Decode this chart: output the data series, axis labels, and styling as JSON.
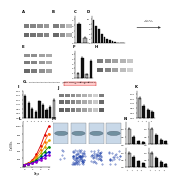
{
  "bg_color": "#ffffff",
  "wb_band_color": "#444444",
  "wb_bg": "#e8e8e8",
  "bar_black": "#111111",
  "bar_gray": "#888888",
  "bar_lgray": "#cccccc",
  "bar_white": "#ffffff",
  "seq_bg": "#f0f0f0",
  "line_colors": [
    "#dd0000",
    "#ff6600",
    "#ddaa00",
    "#008800",
    "#0000cc",
    "#9900cc"
  ],
  "colony_bg": "#c8d8e8",
  "colony_circle": "#7090a0",
  "invasion_bg": "#d0d8e0",
  "panel_C_vals": [
    3.2,
    0.9
  ],
  "panel_C_colors": [
    "#111111",
    "#aaaaaa"
  ],
  "panel_D_vals": [
    9.5,
    7.2,
    5.8,
    4.0,
    2.5,
    1.8,
    1.2,
    0.8,
    0.5,
    0.3,
    0.2,
    0.15
  ],
  "panel_D_colors": [
    "#111111",
    "#111111",
    "#111111",
    "#111111",
    "#111111",
    "#111111",
    "#111111",
    "#111111",
    "#111111",
    "#111111",
    "#111111",
    "#111111"
  ],
  "panel_F_vals": [
    1.0,
    4.2,
    0.8,
    3.5
  ],
  "panel_F_colors": [
    "#aaaaaa",
    "#111111",
    "#aaaaaa",
    "#111111"
  ],
  "panel_H_vals": [
    1.2,
    0.8,
    0.5,
    0.3,
    0.9,
    0.7,
    0.4,
    0.6,
    1.0
  ],
  "panel_H_colors": [
    "#111111",
    "#111111",
    "#111111",
    "#111111",
    "#111111",
    "#111111",
    "#111111",
    "#111111",
    "#aaaaaa"
  ],
  "panel_K_vals": [
    1.0,
    0.6,
    0.4,
    0.3
  ],
  "panel_K_colors": [
    "#aaaaaa",
    "#111111",
    "#111111",
    "#111111"
  ],
  "panel_N1_vals": [
    1.0,
    0.5,
    0.2,
    0.15
  ],
  "panel_N1_colors": [
    "#aaaaaa",
    "#111111",
    "#111111",
    "#111111"
  ],
  "panel_N2_vals": [
    1.0,
    0.6,
    0.3,
    0.2
  ],
  "panel_N2_colors": [
    "#aaaaaa",
    "#111111",
    "#111111",
    "#111111"
  ],
  "line_data": [
    [
      50,
      80,
      160,
      300,
      520,
      780,
      1000
    ],
    [
      50,
      75,
      140,
      250,
      420,
      620,
      820
    ],
    [
      50,
      70,
      120,
      200,
      330,
      480,
      650
    ],
    [
      50,
      65,
      105,
      165,
      260,
      370,
      490
    ],
    [
      50,
      60,
      90,
      135,
      200,
      280,
      370
    ],
    [
      50,
      55,
      80,
      115,
      165,
      220,
      290
    ]
  ],
  "x_days": [
    0,
    1,
    2,
    3,
    4,
    5,
    6
  ]
}
